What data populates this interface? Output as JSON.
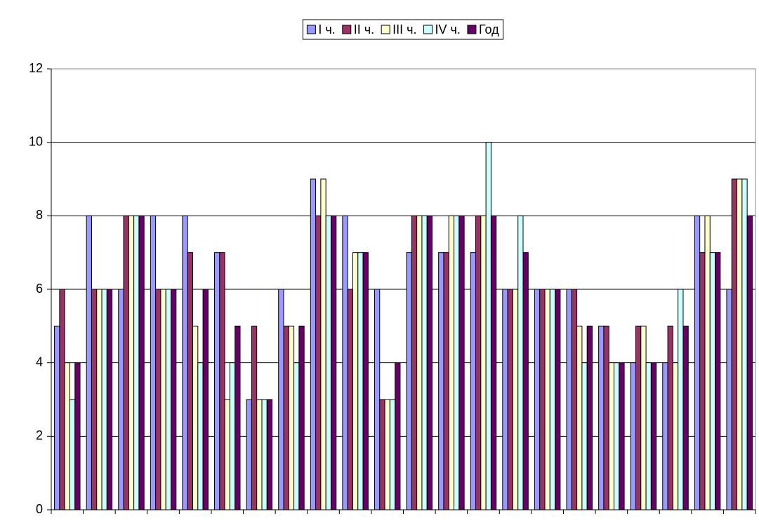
{
  "chart_data": {
    "type": "bar",
    "categories": [
      null,
      null,
      null,
      null,
      null,
      null,
      null,
      null,
      null,
      null,
      null,
      null,
      null,
      null,
      null,
      null,
      null,
      null,
      null,
      null,
      null,
      null
    ],
    "series": [
      {
        "name": "I ч.",
        "color": "#9999ff",
        "values": [
          5,
          8,
          6,
          8,
          8,
          7,
          3,
          6,
          9,
          8,
          6,
          7,
          7,
          7,
          6,
          6,
          6,
          5,
          4,
          4,
          8,
          6
        ]
      },
      {
        "name": "II ч.",
        "color": "#993366",
        "values": [
          6,
          6,
          8,
          6,
          7,
          7,
          5,
          5,
          8,
          6,
          3,
          8,
          7,
          8,
          6,
          6,
          6,
          5,
          5,
          5,
          7,
          9
        ]
      },
      {
        "name": "III ч.",
        "color": "#ffffcc",
        "values": [
          4,
          6,
          8,
          6,
          5,
          3,
          3,
          5,
          9,
          7,
          3,
          8,
          8,
          8,
          6,
          6,
          5,
          4,
          5,
          4,
          8,
          9
        ]
      },
      {
        "name": "IV ч.",
        "color": "#ccffff",
        "values": [
          3,
          6,
          8,
          6,
          4,
          4,
          3,
          4,
          8,
          7,
          3,
          8,
          8,
          10,
          8,
          6,
          4,
          4,
          4,
          6,
          7,
          9
        ]
      },
      {
        "name": "Год",
        "color": "#660066",
        "values": [
          4,
          6,
          8,
          6,
          6,
          5,
          3,
          5,
          8,
          7,
          4,
          8,
          8,
          8,
          7,
          6,
          5,
          4,
          4,
          5,
          7,
          8
        ]
      }
    ],
    "ylim": [
      0,
      12
    ],
    "yticks": [
      0,
      2,
      4,
      6,
      8,
      10,
      12
    ],
    "grid": true,
    "legend": "top"
  }
}
